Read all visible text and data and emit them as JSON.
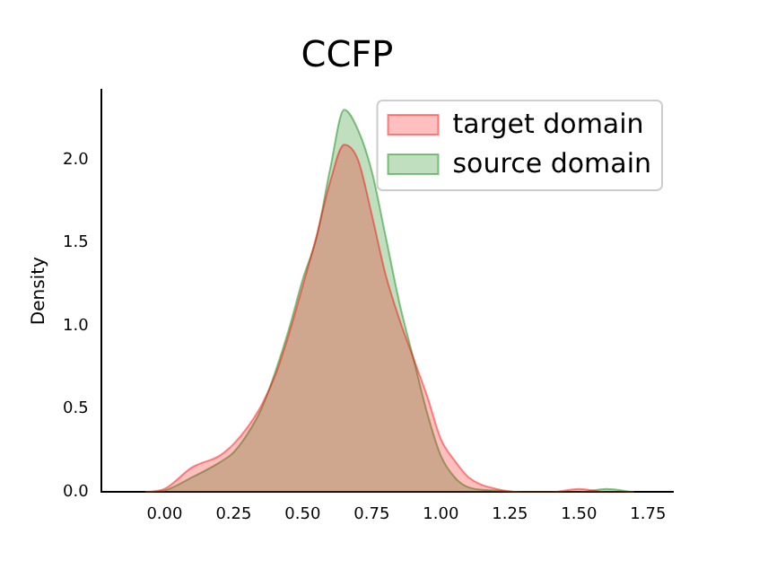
{
  "chart_data": {
    "type": "area",
    "title": "CCFP",
    "ylabel": "Density",
    "xlim": [
      -0.23,
      1.84
    ],
    "ylim": [
      0,
      2.42
    ],
    "xticks": [
      {
        "value": 0,
        "label": "0.00"
      },
      {
        "value": 0.25,
        "label": "0.25"
      },
      {
        "value": 0.5,
        "label": "0.50"
      },
      {
        "value": 0.75,
        "label": "0.75"
      },
      {
        "value": 1,
        "label": "1.00"
      },
      {
        "value": 1.25,
        "label": "1.25"
      },
      {
        "value": 1.5,
        "label": "1.50"
      },
      {
        "value": 1.75,
        "label": "1.75"
      }
    ],
    "yticks": [
      {
        "value": 0,
        "label": "0.0"
      },
      {
        "value": 0.5,
        "label": "0.5"
      },
      {
        "value": 1,
        "label": "1.0"
      },
      {
        "value": 1.5,
        "label": "1.5"
      },
      {
        "value": 2,
        "label": "2.0"
      }
    ],
    "legend": "top right",
    "grid": false,
    "x": [
      -0.07,
      0,
      0.1,
      0.2,
      0.25,
      0.3,
      0.35,
      0.4,
      0.45,
      0.5,
      0.55,
      0.6,
      0.65,
      0.7,
      0.75,
      0.8,
      0.85,
      0.9,
      0.95,
      1,
      1.05,
      1.1,
      1.2,
      1.3,
      1.4,
      1.5,
      1.6,
      1.7
    ],
    "series": [
      {
        "name": "target domain",
        "color": "#ff0000",
        "values": [
          0,
          0.02,
          0.15,
          0.22,
          0.29,
          0.39,
          0.52,
          0.7,
          0.95,
          1.24,
          1.54,
          1.87,
          2.09,
          2.0,
          1.67,
          1.31,
          1.04,
          0.81,
          0.58,
          0.32,
          0.19,
          0.09,
          0.02,
          0,
          0,
          0.02,
          0,
          0
        ]
      },
      {
        "name": "source domain",
        "color": "#008000",
        "values": [
          0,
          0.01,
          0.09,
          0.18,
          0.24,
          0.35,
          0.5,
          0.72,
          0.98,
          1.28,
          1.53,
          1.95,
          2.3,
          2.18,
          1.93,
          1.54,
          1.14,
          0.81,
          0.48,
          0.22,
          0.09,
          0.03,
          0.01,
          0,
          0,
          0,
          0.02,
          0
        ]
      }
    ]
  }
}
